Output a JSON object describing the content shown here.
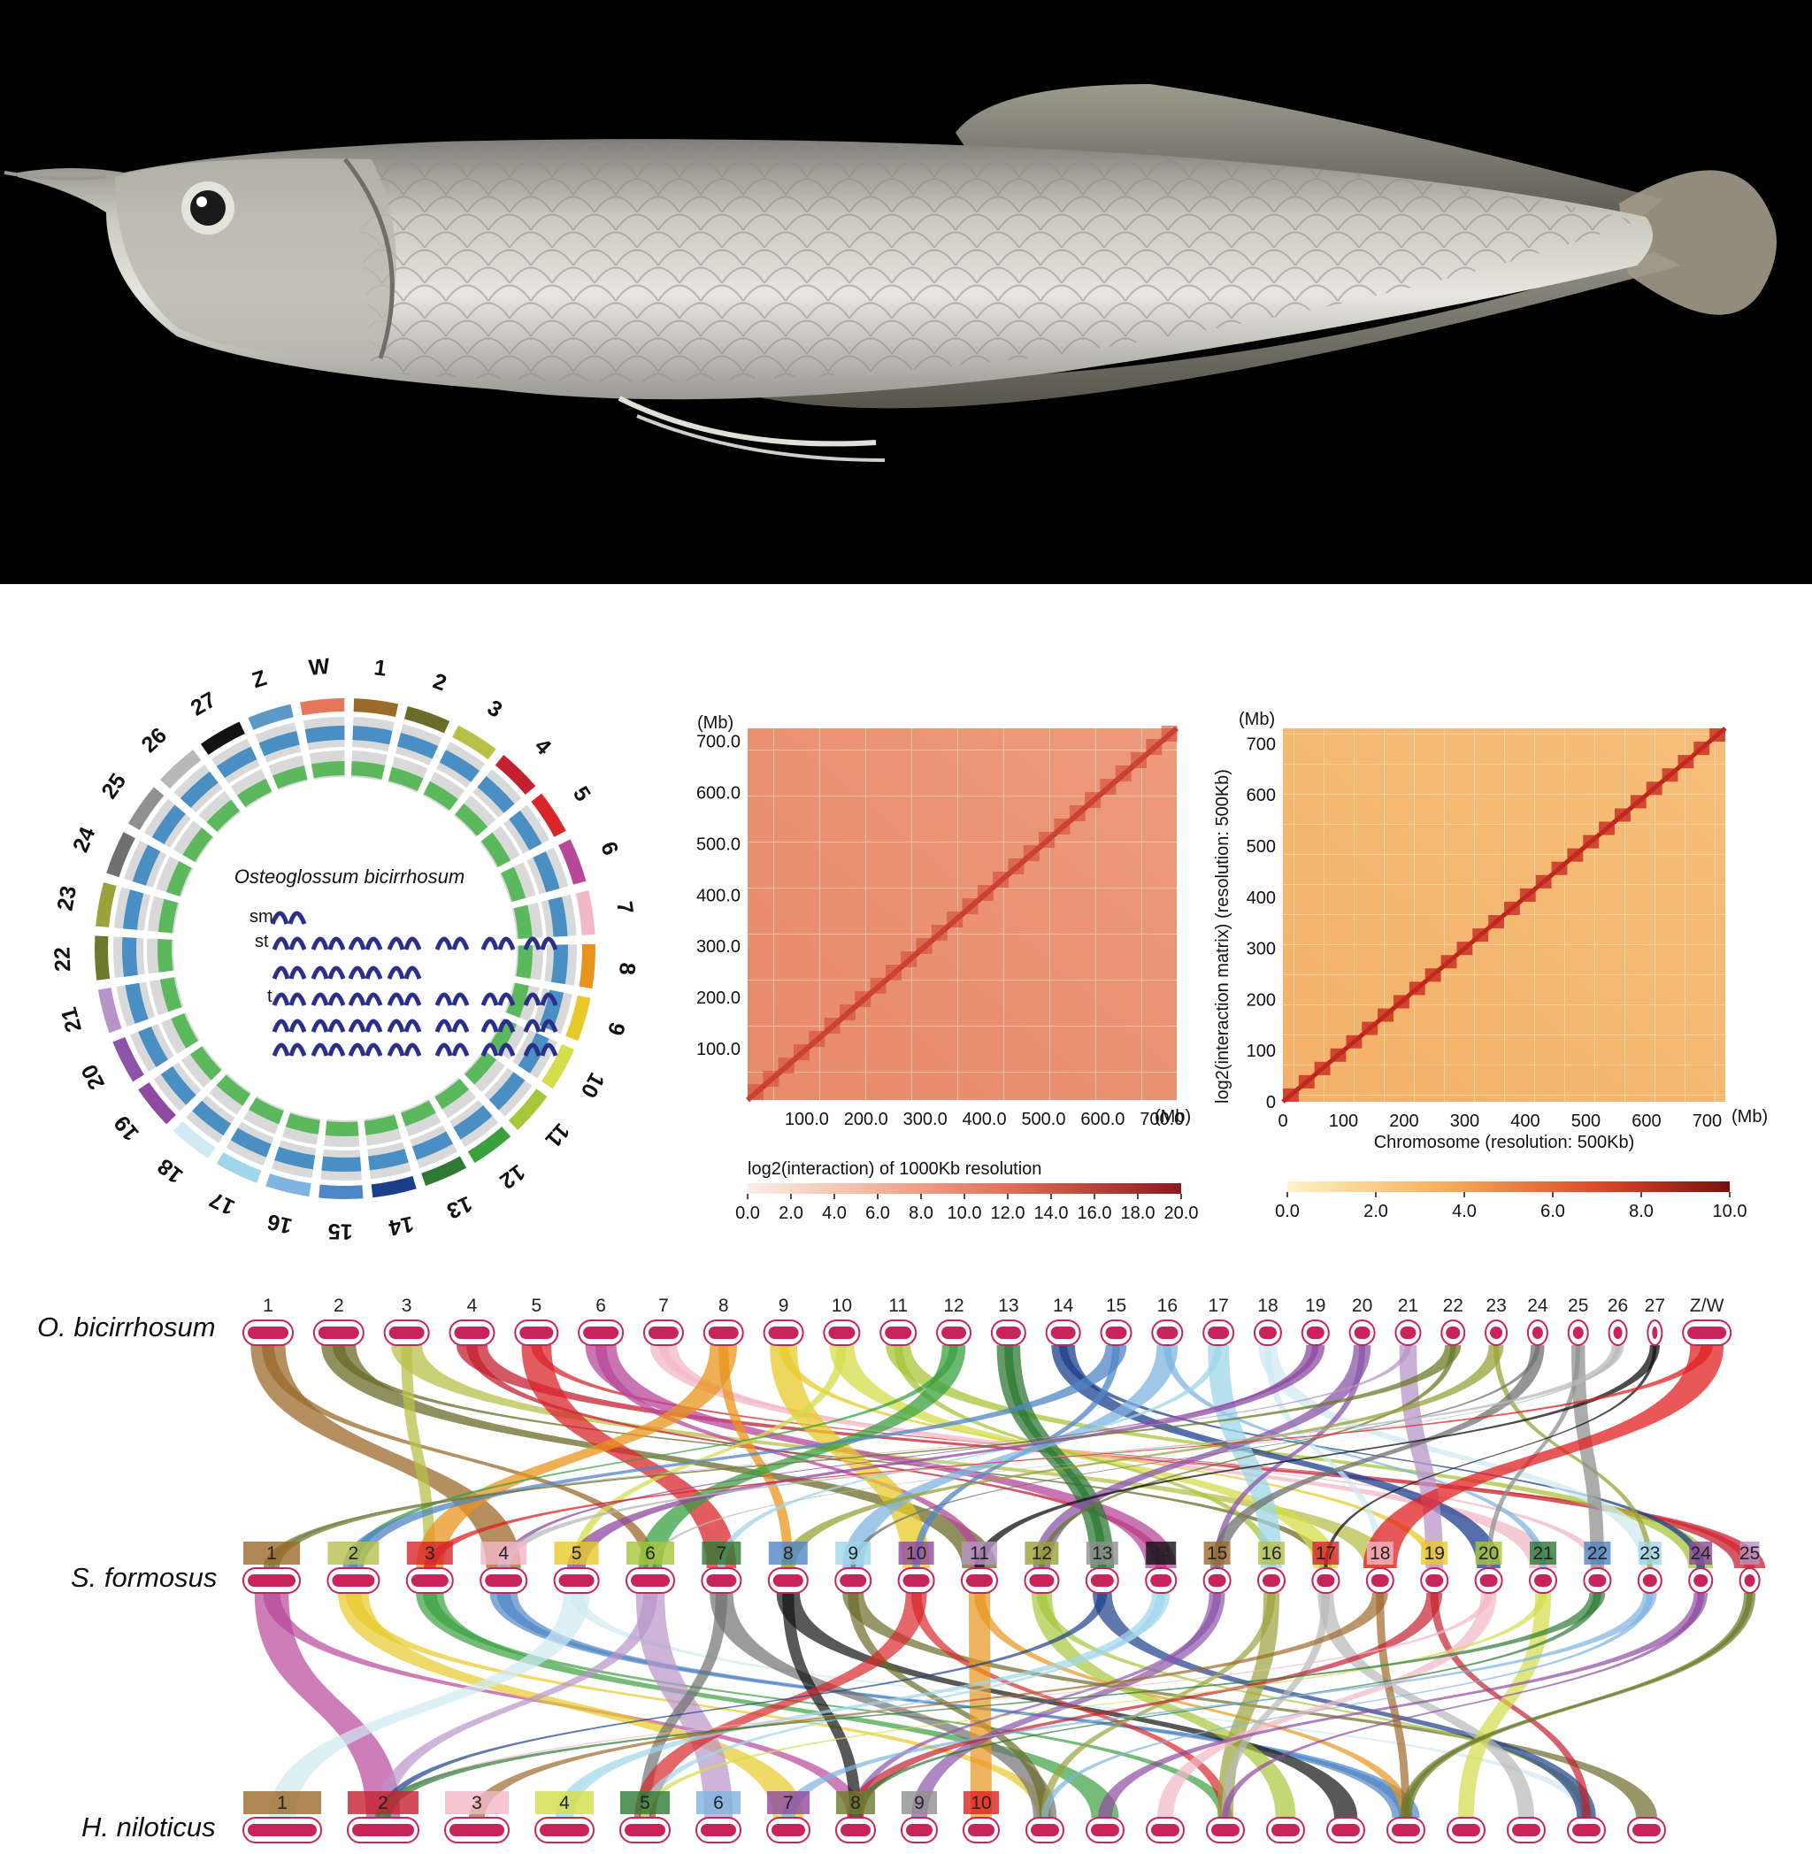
{
  "circos": {
    "species": "Osteoglossum bicirrhosum",
    "chromosomes": [
      "W",
      "1",
      "2",
      "3",
      "4",
      "5",
      "6",
      "7",
      "8",
      "9",
      "10",
      "11",
      "12",
      "13",
      "14",
      "15",
      "16",
      "17",
      "18",
      "19",
      "20",
      "21",
      "22",
      "23",
      "24",
      "25",
      "26",
      "27",
      "Z"
    ],
    "colors": [
      "#e8765a",
      "#9c6a2b",
      "#6b6b2a",
      "#b8c04a",
      "#c4202f",
      "#d8262b",
      "#b8479a",
      "#f2b8c6",
      "#e8941c",
      "#e8c92a",
      "#d4dd4a",
      "#a8c63a",
      "#3aa040",
      "#2e7a34",
      "#1c3f8c",
      "#4f86c6",
      "#7fb4e0",
      "#9fd6ea",
      "#cfeaf2",
      "#8e4aa0",
      "#8a55a8",
      "#b894c8",
      "#6b7a2a",
      "#9aa23a",
      "#707070",
      "#909090",
      "#b8b8b8",
      "#111111",
      "#5c98c8"
    ],
    "karyotype_labels": [
      "sm",
      "st",
      "t"
    ]
  },
  "hic1": {
    "unit": "(Mb)",
    "x_unit": "(Mb)",
    "yticks": [
      "100.0",
      "200.0",
      "300.0",
      "400.0",
      "500.0",
      "600.0",
      "700.0"
    ],
    "xticks": [
      "100.0",
      "200.0",
      "300.0",
      "400.0",
      "500.0",
      "600.0",
      "700.0"
    ],
    "colorbar_label": "log2(interaction) of 1000Kb resolution",
    "colorbar_ticks": [
      "0.0",
      "2.0",
      "4.0",
      "6.0",
      "8.0",
      "10.0",
      "12.0",
      "14.0",
      "16.0",
      "18.0",
      "20.0"
    ]
  },
  "hic2": {
    "unit": "(Mb)",
    "x_unit": "(Mb)",
    "ylabel": "log2(interaction matrix) (resolution: 500Kb)",
    "xlabel": "Chromosome (resolution: 500Kb)",
    "yticks": [
      "0",
      "100",
      "200",
      "300",
      "400",
      "500",
      "600",
      "700"
    ],
    "xticks": [
      "0",
      "100",
      "200",
      "300",
      "400",
      "500",
      "600",
      "700"
    ],
    "colorbar_ticks": [
      "0.0",
      "2.0",
      "4.0",
      "6.0",
      "8.0",
      "10.0"
    ]
  },
  "synteny": {
    "species": [
      "O. bicirrhosum",
      "S. formosus",
      "H. niloticus"
    ],
    "ob_chroms": [
      "1",
      "2",
      "3",
      "4",
      "5",
      "6",
      "7",
      "8",
      "9",
      "10",
      "11",
      "12",
      "13",
      "14",
      "15",
      "16",
      "17",
      "18",
      "19",
      "20",
      "21",
      "22",
      "23",
      "24",
      "25",
      "26",
      "27",
      "Z/W"
    ],
    "sf_chroms": [
      "1",
      "2",
      "3",
      "4",
      "5",
      "6",
      "7",
      "8",
      "9",
      "10",
      "11",
      "12",
      "13",
      "14",
      "15",
      "16",
      "17",
      "18",
      "19",
      "20",
      "21",
      "22",
      "23",
      "24",
      "25"
    ],
    "hn_chroms": [
      "1",
      "2",
      "3",
      "4",
      "5",
      "6",
      "7",
      "8",
      "9",
      "10"
    ]
  }
}
